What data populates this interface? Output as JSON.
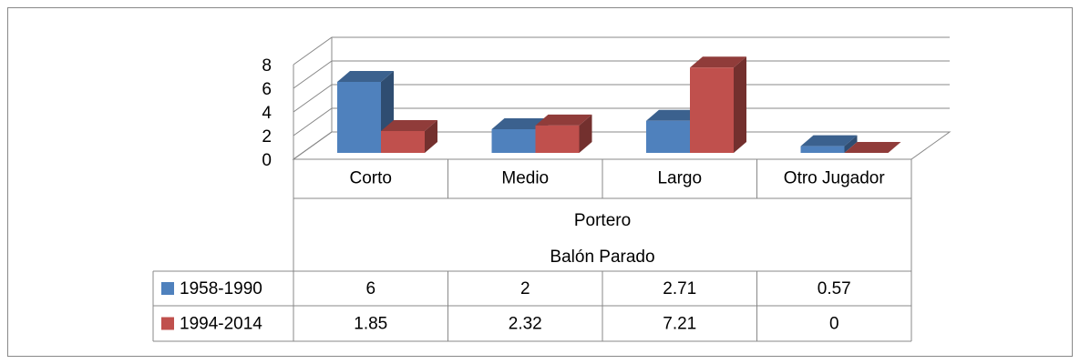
{
  "chart_data": {
    "type": "bar3d",
    "categories": [
      "Corto",
      "Medio",
      "Largo",
      "Otro Jugador"
    ],
    "category_groups": [
      "Portero",
      "Balón Parado"
    ],
    "series": [
      {
        "name": "1958-1990",
        "color": "#4f81bd",
        "values": [
          6,
          2,
          2.71,
          0.57
        ]
      },
      {
        "name": "1994-2014",
        "color": "#c0504d",
        "values": [
          1.85,
          2.32,
          7.21,
          0
        ]
      }
    ],
    "ylim": [
      0,
      8
    ],
    "yticks": [
      0,
      2,
      4,
      6,
      8
    ],
    "grid": true,
    "data_table": true
  }
}
